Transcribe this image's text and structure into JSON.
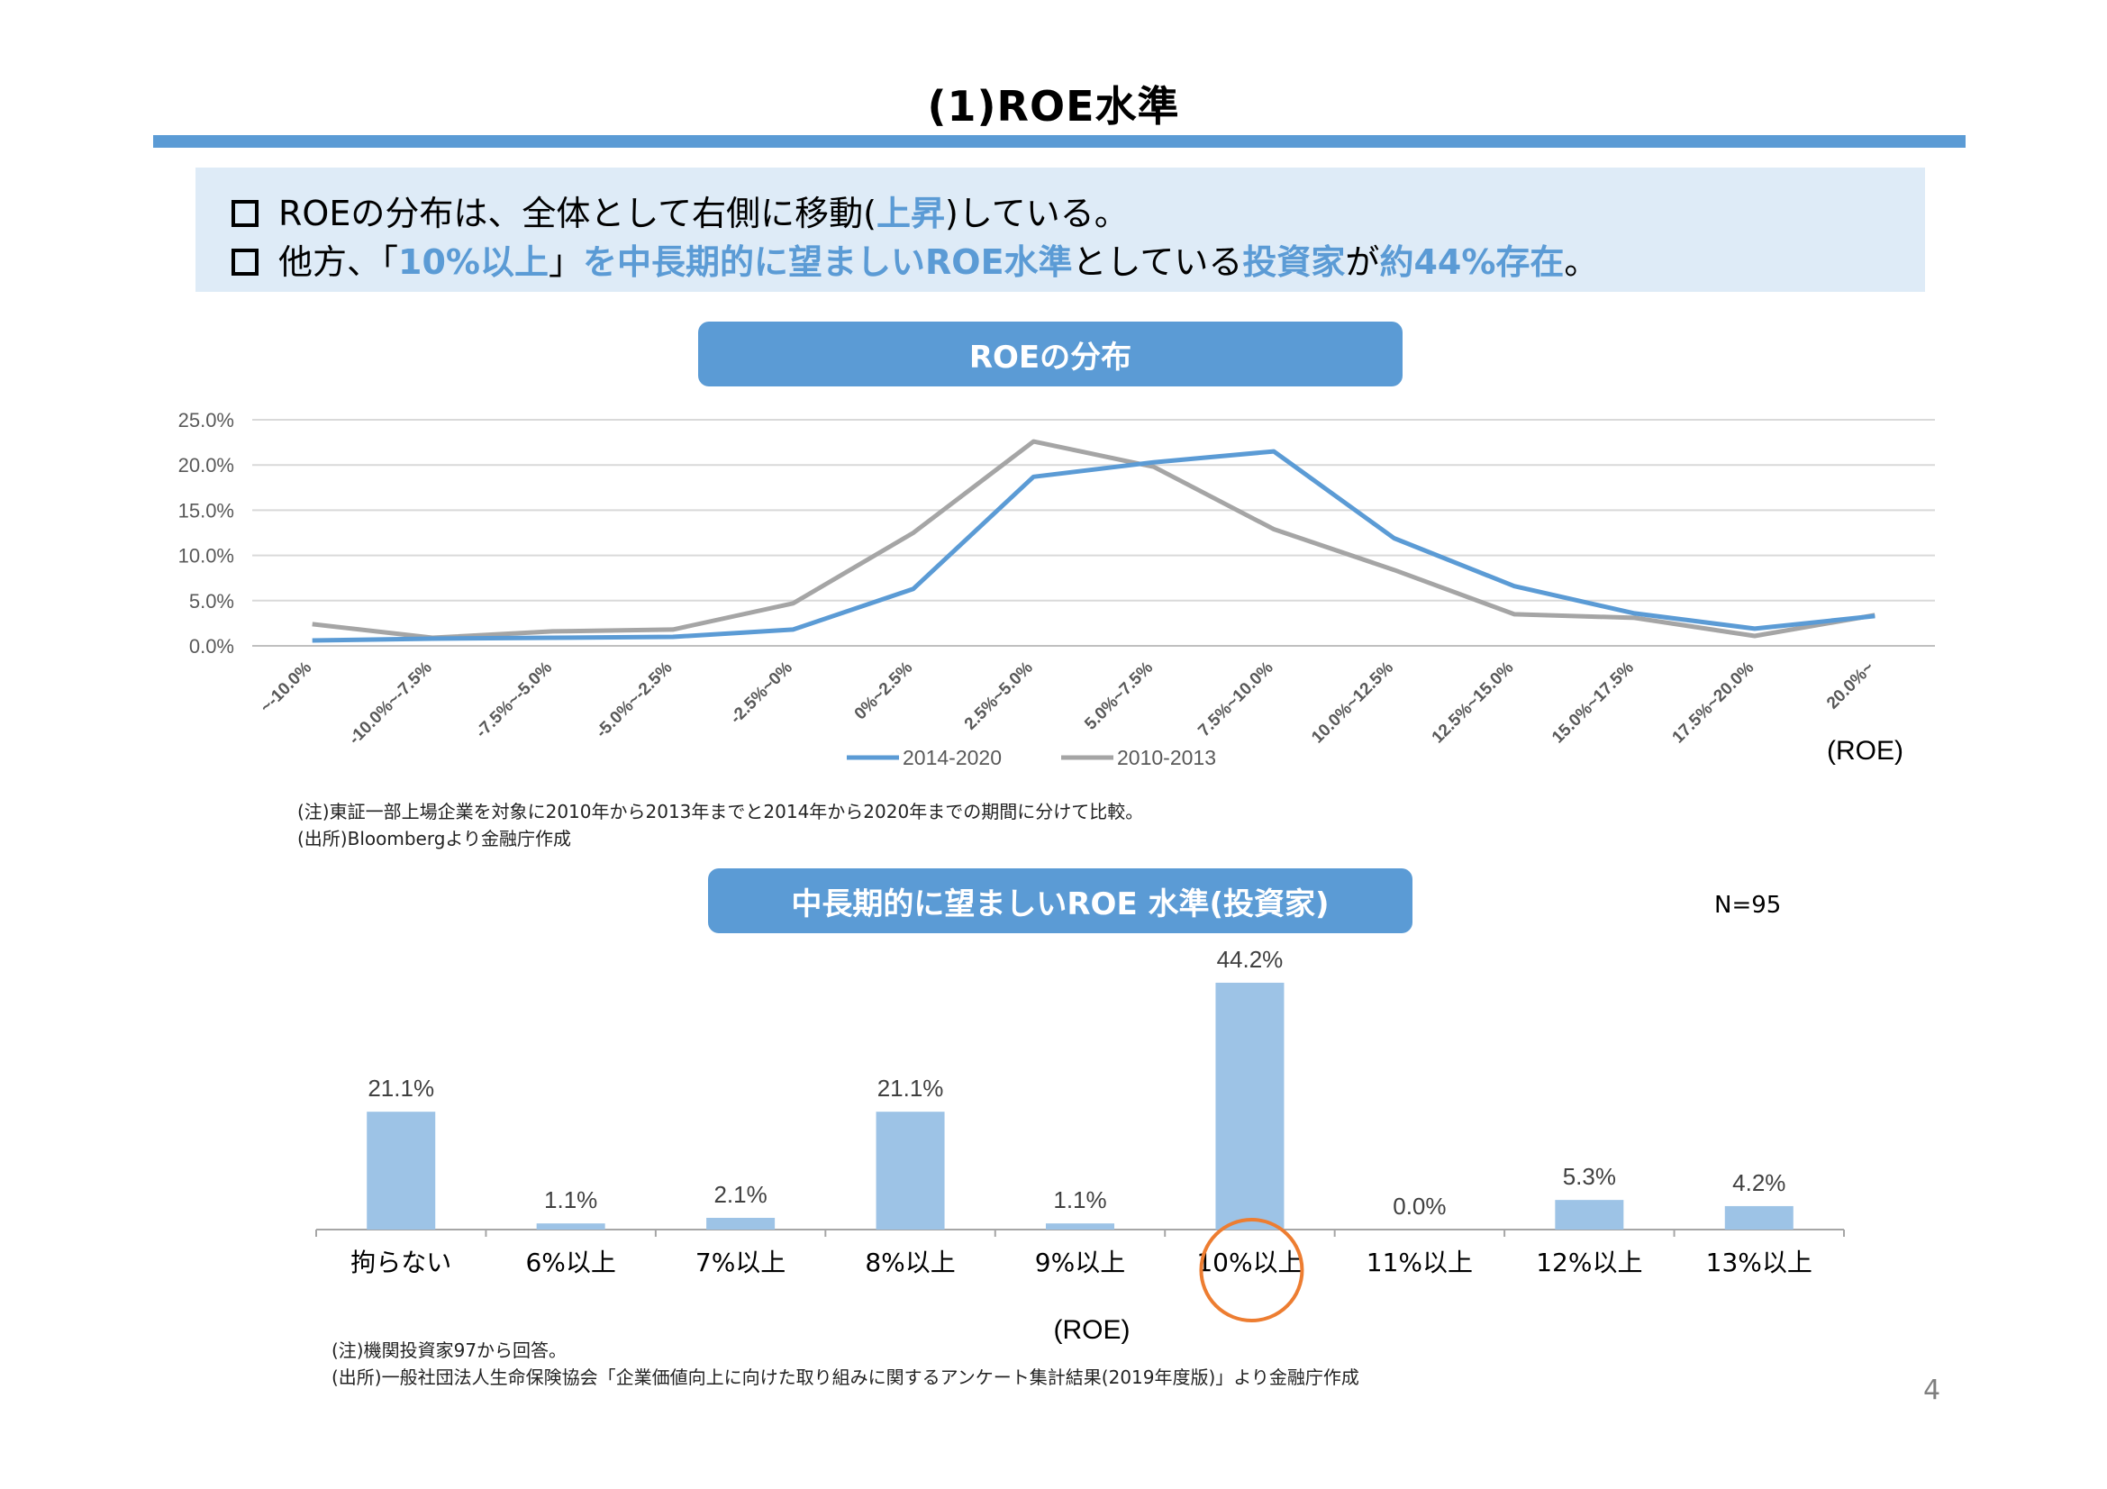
{
  "page": {
    "title": "(1)ROE水準",
    "page_number": "4"
  },
  "summary": {
    "line1": {
      "pre": "ROEの分布は、全体として右側に移動(",
      "hl": "上昇",
      "post": ")している。"
    },
    "line2": {
      "pre": "他方、「",
      "hl1": "10%以上",
      "mid1": "」",
      "hl2": "を中長期的に望ましいROE水準",
      "mid2": "としている",
      "hl3": "投資家",
      "mid3": "が",
      "hl4": "約44%存在",
      "post": "。"
    }
  },
  "chart1": {
    "pill_title": "ROEの分布",
    "note1": "(注)東証一部上場企業を対象に2010年から2013年までと2014年から2020年までの期間に分けて比較。",
    "note2": "(出所)Bloombergより金融庁作成"
  },
  "chart2": {
    "pill_title": "中長期的に望ましいROE 水準(投資家)",
    "n_label": "N=95",
    "note1": "(注)機関投資家97から回答。",
    "note2": "(出所)一般社団法人生命保険協会「企業価値向上に向けた取り組みに関するアンケート集計結果(2019年度版)」より金融庁作成"
  },
  "chart_data": [
    {
      "type": "line",
      "title": "ROEの分布",
      "xlabel": "(ROE)",
      "ylabel": "",
      "categories": [
        "~-10.0%",
        "-10.0%~-7.5%",
        "-7.5%~-5.0%",
        "-5.0%~-2.5%",
        "-2.5%~0%",
        "0%~2.5%",
        "2.5%~5.0%",
        "5.0%~7.5%",
        "7.5%~10.0%",
        "10.0%~12.5%",
        "12.5%~15.0%",
        "15.0%~17.5%",
        "17.5%~20.0%",
        "20.0%~"
      ],
      "series": [
        {
          "name": "2014-2020",
          "color": "#5b9bd5",
          "values": [
            0.6,
            0.8,
            0.9,
            1.0,
            1.8,
            6.3,
            18.7,
            20.3,
            21.5,
            11.9,
            6.6,
            3.6,
            1.9,
            3.3
          ]
        },
        {
          "name": "2010-2013",
          "color": "#a5a5a5",
          "values": [
            2.4,
            0.9,
            1.6,
            1.8,
            4.7,
            12.5,
            22.6,
            19.8,
            12.9,
            8.4,
            3.5,
            3.1,
            1.1,
            3.4
          ]
        }
      ],
      "ylim": [
        0,
        25
      ],
      "yticks": [
        "0.0%",
        "5.0%",
        "10.0%",
        "15.0%",
        "20.0%",
        "25.0%"
      ],
      "grid": true,
      "legend": "bottom"
    },
    {
      "type": "bar",
      "title": "中長期的に望ましいROE 水準(投資家)",
      "xlabel": "(ROE)",
      "categories": [
        "拘らない",
        "6%以上",
        "7%以上",
        "8%以上",
        "9%以上",
        "10%以上",
        "11%以上",
        "12%以上",
        "13%以上"
      ],
      "values": [
        21.1,
        1.1,
        2.1,
        21.1,
        1.1,
        44.2,
        0.0,
        5.3,
        4.2
      ],
      "value_labels": [
        "21.1%",
        "1.1%",
        "2.1%",
        "21.1%",
        "1.1%",
        "44.2%",
        "0.0%",
        "5.3%",
        "4.2%"
      ],
      "color": "#9dc3e6",
      "highlight_category": "10%以上",
      "highlight_color": "#ed7d31",
      "grid": false
    }
  ]
}
